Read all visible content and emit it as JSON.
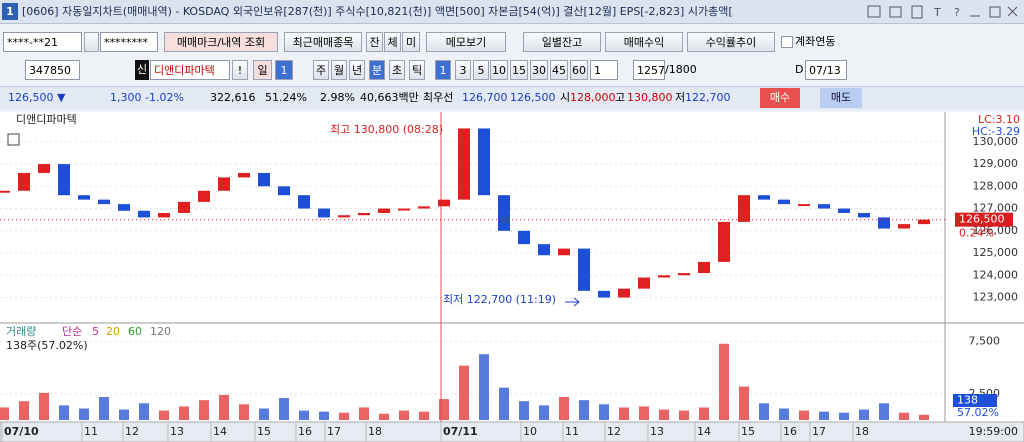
{
  "title_bar": {
    "number": "1",
    "text": "[0606] 자동일지차트(매매내역) - KOSDAQ 외국인보유[287(천)] 주식수[10,821(천)] 액면[500] 자본금[54(억)] 결산[12월] EPS[-2,823] 시가총액["
  },
  "toolbar1": [
    "****-**21",
    "********",
    "매매마크/내역 조회",
    "최근매매종목",
    "잔",
    "체",
    "미",
    "메모보기",
    "일별잔고",
    "매매수익",
    "수익률추이",
    "계좌연동"
  ],
  "toolbar2": [
    "347850",
    "신",
    "디앤디파마텍",
    "!",
    "일",
    "1",
    "주",
    "월",
    "년",
    "분",
    "초",
    "틱",
    "1",
    "3",
    "5",
    "10",
    "15",
    "30",
    "45",
    "60",
    "1",
    "1257",
    "/1800",
    "D",
    "07/13"
  ],
  "quote": [
    "126,500 ▼",
    "1,300",
    "-1.02%",
    "322,616",
    "51.24%",
    "2.98%",
    "40,663백만",
    "최우선",
    "126,700",
    "126,500",
    "시",
    "128,000",
    "고",
    "130,800",
    "저",
    "122,700",
    "매수",
    "매도"
  ],
  "chart": {
    "stock_name": "디앤디파마텍",
    "lc": "LC:3.10",
    "hc": "HC:-3.29",
    "high_note": "최고 130,800 (08:28)",
    "low_note": "최저 122,700 (11:19)",
    "price": {
      "ylim": [
        121900,
        131250
      ],
      "yticks": [
        {
          "value": 123000,
          "label": "123,000"
        },
        {
          "value": 124000,
          "label": "124,000"
        },
        {
          "value": 125000,
          "label": "125,000"
        },
        {
          "value": 126000,
          "label": "126,000"
        },
        {
          "value": 127000,
          "label": "127,000"
        },
        {
          "value": 128000,
          "label": "128,000"
        },
        {
          "value": 129000,
          "label": "129,000"
        },
        {
          "value": 130000,
          "label": "130,000"
        }
      ],
      "values": [
        127800,
        128600,
        129000,
        127600,
        127400,
        127200,
        126900,
        126600,
        126800,
        127300,
        127800,
        128400,
        128600,
        128000,
        127600,
        127000,
        126600,
        126700,
        126800,
        127000,
        127000,
        127100,
        127400,
        130600,
        127600,
        126000,
        125400,
        124900,
        125200,
        123300,
        123000,
        123400,
        123900,
        124000,
        124100,
        124600,
        126400,
        127600,
        127400,
        127200,
        127200,
        127000,
        126800,
        126600,
        126100,
        126300,
        126500
      ],
      "current": {
        "value": 126500,
        "label": "126,500"
      },
      "change_label": "0.24%"
    },
    "volume": {
      "legend": [
        "거래량",
        "단순",
        "5",
        "20",
        "60",
        "120"
      ],
      "note": "138주(57.02%)",
      "ylim": [
        0,
        9000
      ],
      "yticks": [
        {
          "value": 2500,
          "label": "2,500"
        },
        {
          "value": 7500,
          "label": "7,500"
        }
      ],
      "values": [
        1200,
        1800,
        2600,
        1400,
        1100,
        2200,
        1000,
        1600,
        900,
        1300,
        1900,
        2400,
        1500,
        1100,
        2100,
        900,
        800,
        700,
        1200,
        600,
        900,
        800,
        2000,
        5200,
        6300,
        3100,
        1800,
        1400,
        2200,
        1900,
        1500,
        1200,
        1300,
        1000,
        900,
        1200,
        7300,
        3200,
        1600,
        1100,
        900,
        800,
        700,
        1000,
        1600,
        700,
        500
      ],
      "current": "138",
      "current_pct": "57.02%"
    },
    "x_labels": [
      "07/10",
      "11",
      "12",
      "13",
      "14",
      "15",
      "16",
      "17",
      "18",
      "07/11",
      "10",
      "11",
      "12",
      "13",
      "14",
      "15",
      "16",
      "17",
      "18"
    ],
    "time_label": "19:59:00"
  }
}
